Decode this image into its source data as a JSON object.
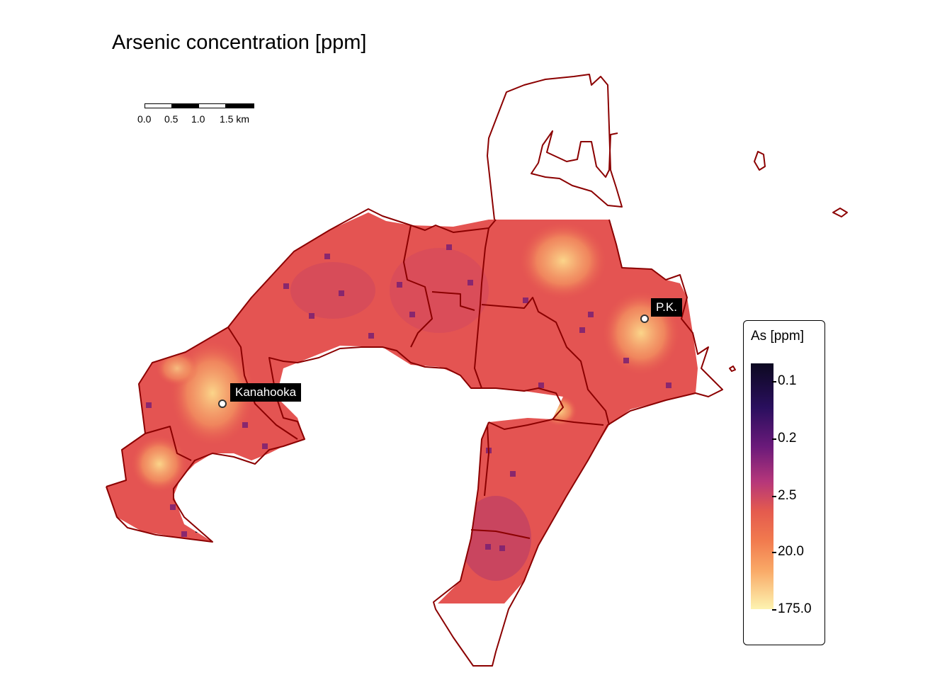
{
  "title": "Arsenic concentration [ppm]",
  "scale_bar": {
    "labels": [
      "0.0",
      "0.5",
      "1.0",
      "1.5 km"
    ]
  },
  "places": [
    {
      "name": "Kanahooka"
    },
    {
      "name": "P.K."
    }
  ],
  "legend": {
    "title": "As [ppm]",
    "labels": [
      "0.1",
      "0.2",
      "2.5",
      "20.0",
      "175.0"
    ],
    "palette": [
      "#0c0820",
      "#6b1a7a",
      "#e45a4e",
      "#f9a866",
      "#fdf3b0"
    ]
  },
  "colors": {
    "boundary": "#8b0000",
    "raster_base": "#e8594f",
    "label_bg": "#000000"
  }
}
